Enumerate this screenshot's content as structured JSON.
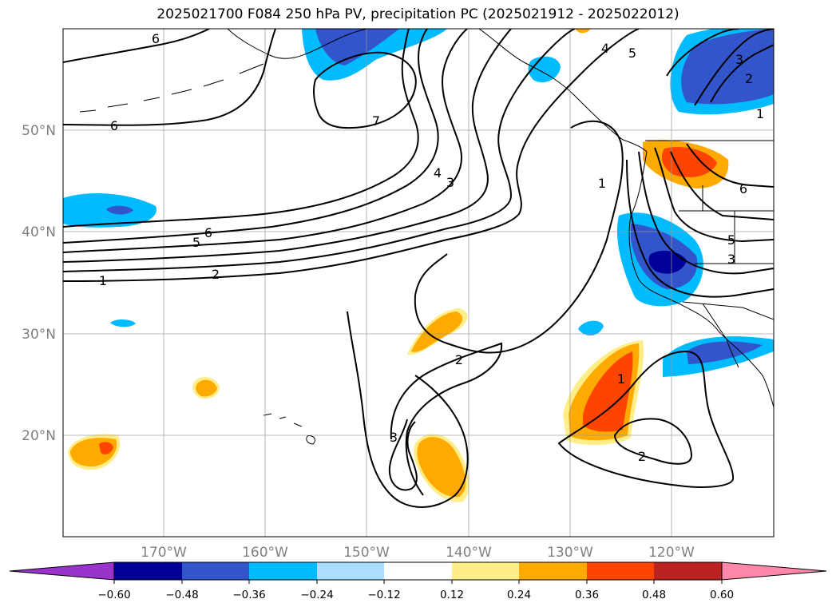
{
  "title": "2025021700 F084 250 hPa PV, precipitation PC (2025021912 - 2025022012)",
  "map": {
    "projection": "PlateCarree",
    "lon_range": [
      -180,
      -110
    ],
    "lat_range": [
      10,
      60
    ],
    "lat_ticks": [
      "20°N",
      "30°N",
      "40°N",
      "50°N"
    ],
    "lon_ticks": [
      "170°W",
      "160°W",
      "150°W",
      "140°W",
      "130°W",
      "120°W"
    ],
    "gridlines": true,
    "contour_variable": "250 hPa PV",
    "contour_labels": [
      "6",
      "6",
      "6",
      "5",
      "2",
      "1",
      "7",
      "4",
      "3",
      "2",
      "3",
      "1",
      "2",
      "1",
      "4",
      "5",
      "3",
      "2",
      "1",
      "6",
      "3",
      "5"
    ],
    "shaded_variable": "precipitation PC"
  },
  "colorbar": {
    "ticks": [
      "−0.60",
      "−0.48",
      "−0.36",
      "−0.24",
      "−0.12",
      "0.12",
      "0.24",
      "0.36",
      "0.48",
      "0.60"
    ],
    "colors": [
      "#9933cc",
      "#000099",
      "#3355cc",
      "#00bbff",
      "#aaddff",
      "#ffffff",
      "#ffee88",
      "#ffaa00",
      "#ff4400",
      "#bb2222",
      "#ff88aa"
    ]
  }
}
